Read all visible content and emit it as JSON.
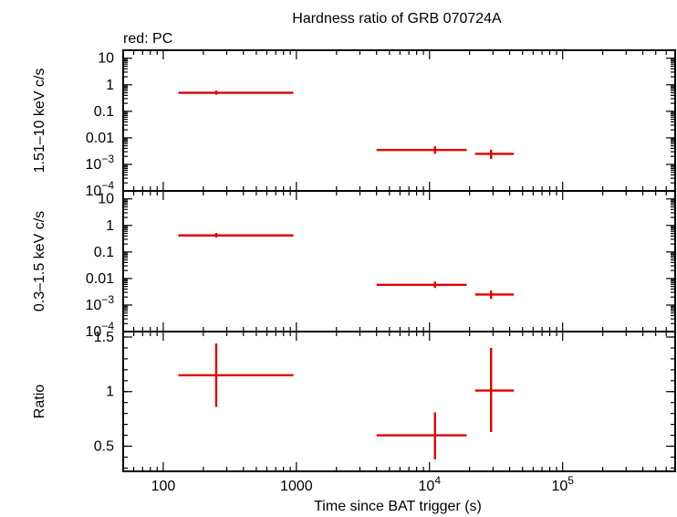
{
  "title": "Hardness ratio of GRB 070724A",
  "subtitle": "red: PC",
  "xlabel": "Time since BAT trigger (s)",
  "colors": {
    "data": "#e00000",
    "axis": "#000000"
  },
  "x_axis": {
    "scale": "log",
    "range": [
      50,
      700000
    ],
    "ticks": [
      {
        "value": 100,
        "base": "100",
        "exp": ""
      },
      {
        "value": 1000,
        "base": "1000",
        "exp": ""
      },
      {
        "value": 10000,
        "base": "10",
        "exp": "4"
      },
      {
        "value": 100000,
        "base": "10",
        "exp": "5"
      }
    ]
  },
  "chart_data": [
    {
      "type": "scatter",
      "ylabel": "1.51–10 keV c/s",
      "yscale": "log",
      "ylim": [
        0.0001,
        20
      ],
      "yticks": [
        {
          "value": 10,
          "base": "10",
          "exp": ""
        },
        {
          "value": 1,
          "base": "1",
          "exp": ""
        },
        {
          "value": 0.1,
          "base": "0.1",
          "exp": ""
        },
        {
          "value": 0.01,
          "base": "0.01",
          "exp": ""
        },
        {
          "value": 0.001,
          "base": "10",
          "exp": "−3"
        },
        {
          "value": 0.0001,
          "base": "10",
          "exp": "−4"
        }
      ],
      "points": [
        {
          "x": 250,
          "xlo": 130,
          "xhi": 950,
          "y": 0.5,
          "ylo": 0.42,
          "yhi": 0.6
        },
        {
          "x": 11000,
          "xlo": 4000,
          "xhi": 19000,
          "y": 0.0035,
          "ylo": 0.0025,
          "yhi": 0.0048
        },
        {
          "x": 29000,
          "xlo": 22000,
          "xhi": 43000,
          "y": 0.0025,
          "ylo": 0.0016,
          "yhi": 0.0036
        }
      ]
    },
    {
      "type": "scatter",
      "ylabel": "0.3–1.5 keV c/s",
      "yscale": "log",
      "ylim": [
        0.0001,
        20
      ],
      "yticks": [
        {
          "value": 10,
          "base": "10",
          "exp": ""
        },
        {
          "value": 1,
          "base": "1",
          "exp": ""
        },
        {
          "value": 0.1,
          "base": "0.1",
          "exp": ""
        },
        {
          "value": 0.01,
          "base": "0.01",
          "exp": ""
        },
        {
          "value": 0.001,
          "base": "10",
          "exp": "−3"
        },
        {
          "value": 0.0001,
          "base": "10",
          "exp": "−4"
        }
      ],
      "points": [
        {
          "x": 250,
          "xlo": 130,
          "xhi": 950,
          "y": 0.42,
          "ylo": 0.35,
          "yhi": 0.52
        },
        {
          "x": 11000,
          "xlo": 4000,
          "xhi": 19000,
          "y": 0.0058,
          "ylo": 0.0044,
          "yhi": 0.0076
        },
        {
          "x": 29000,
          "xlo": 22000,
          "xhi": 43000,
          "y": 0.0025,
          "ylo": 0.0017,
          "yhi": 0.0035
        }
      ]
    },
    {
      "type": "scatter",
      "ylabel": "Ratio",
      "yscale": "linear",
      "ylim": [
        0.27,
        1.55
      ],
      "yticks": [
        {
          "value": 1.5,
          "base": "1.5",
          "exp": ""
        },
        {
          "value": 1,
          "base": "1",
          "exp": ""
        },
        {
          "value": 0.5,
          "base": "0.5",
          "exp": ""
        }
      ],
      "points": [
        {
          "x": 250,
          "xlo": 130,
          "xhi": 950,
          "y": 1.15,
          "ylo": 0.86,
          "yhi": 1.44
        },
        {
          "x": 11000,
          "xlo": 4000,
          "xhi": 19000,
          "y": 0.6,
          "ylo": 0.38,
          "yhi": 0.81
        },
        {
          "x": 29000,
          "xlo": 22000,
          "xhi": 43000,
          "y": 1.01,
          "ylo": 0.63,
          "yhi": 1.4
        }
      ]
    }
  ]
}
